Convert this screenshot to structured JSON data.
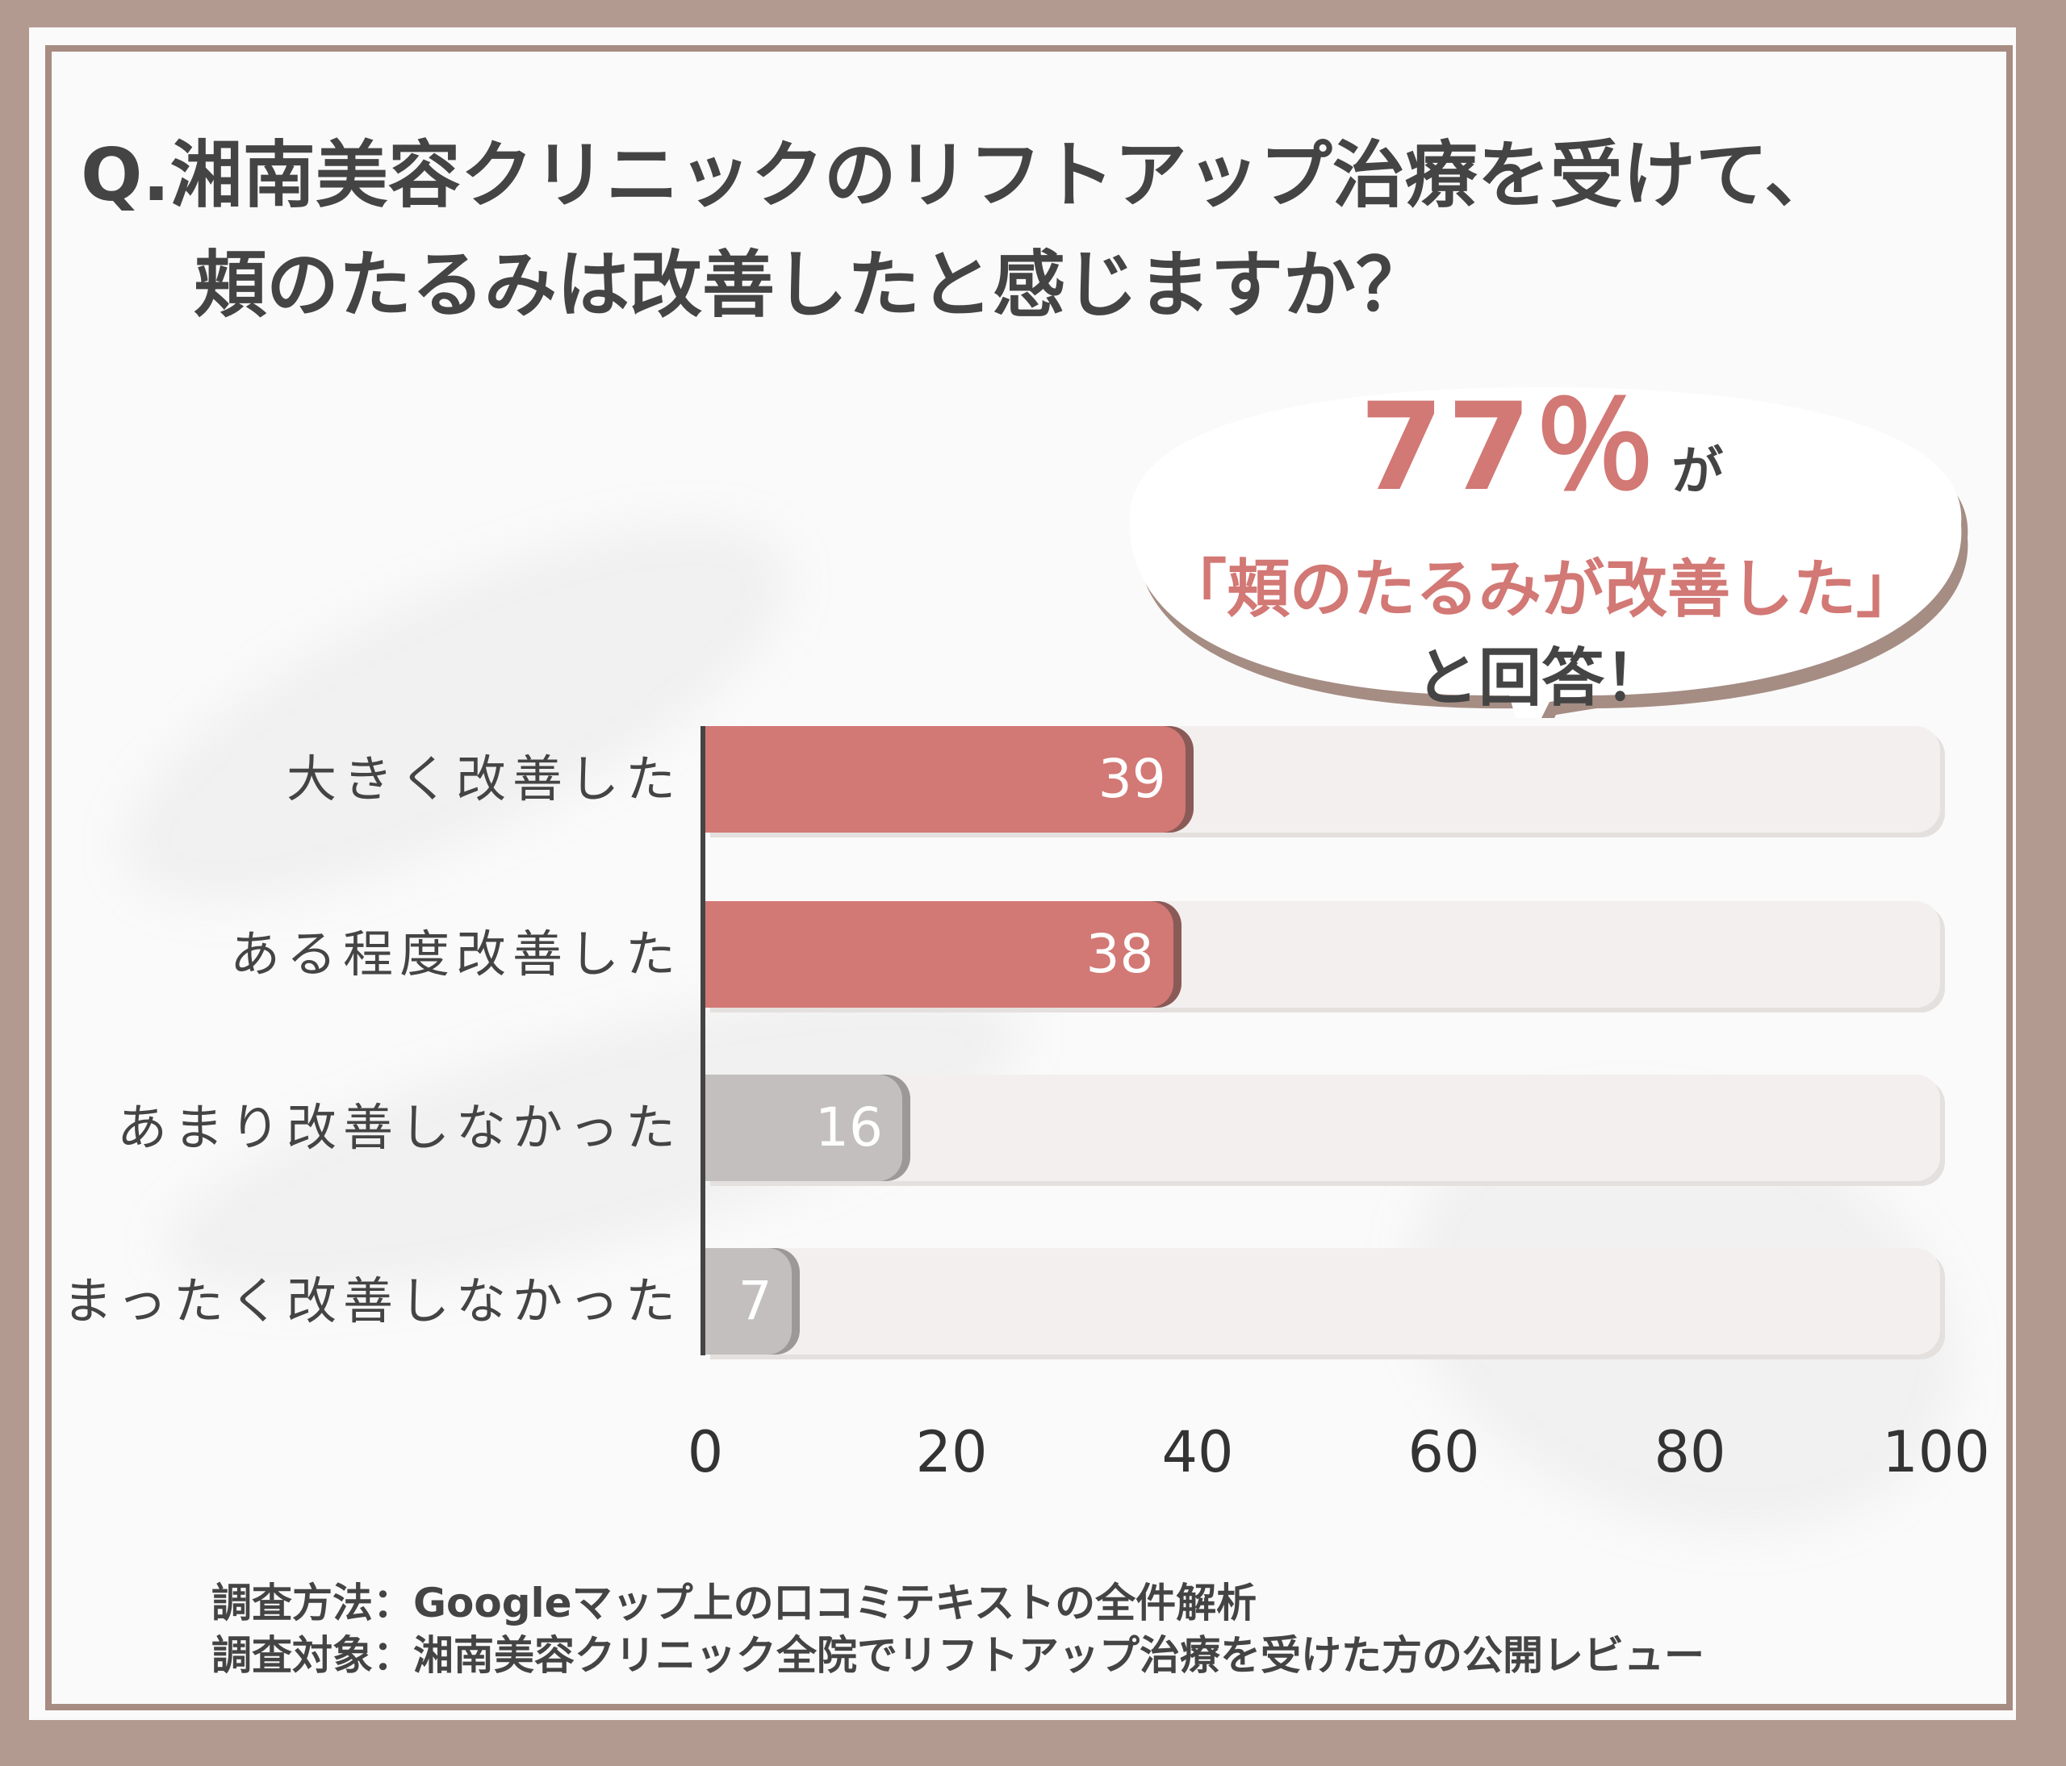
{
  "title": {
    "line1": "Q.湘南美容クリニックのリフトアップ治療を受けて、",
    "line2": "頬のたるみは改善したと感じますか？"
  },
  "callout": {
    "percent": "77％",
    "ga": "が",
    "quote": "「頬のたるみが改善した」",
    "answer": "と回答！"
  },
  "chart_data": {
    "type": "bar",
    "orientation": "horizontal",
    "categories": [
      "大きく改善した",
      "ある程度改善した",
      "あまり改善しなかった",
      "まったく改善しなかった"
    ],
    "values": [
      39,
      38,
      16,
      7
    ],
    "value_labels": [
      "39",
      "38",
      "16",
      "7"
    ],
    "bar_colors": [
      "#d27875",
      "#d27875",
      "#c2bfbe",
      "#c2bfbe"
    ],
    "xlim": [
      0,
      100
    ],
    "xticks": [
      "0",
      "20",
      "40",
      "60",
      "80",
      "100"
    ],
    "grid": false
  },
  "notes": {
    "method": "調査方法：Googleマップ上の口コミテキストの全件解析",
    "target": "調査対象：湘南美容クリニック全院でリフトアップ治療を受けた方の公開レビュー"
  }
}
